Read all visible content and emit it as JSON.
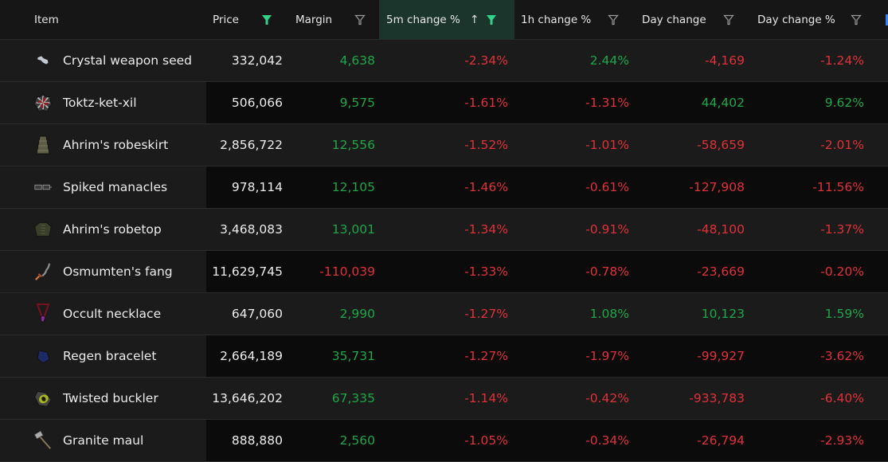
{
  "colors": {
    "positive": "#1fa64a",
    "negative": "#e0313a",
    "accent_filter": "#2fd38a",
    "sorted_header_bg": "#1c352c"
  },
  "header": {
    "columns": [
      {
        "key": "item",
        "label": "Item",
        "filter_active": false,
        "has_filter": false
      },
      {
        "key": "price",
        "label": "Price",
        "filter_active": true,
        "has_filter": true
      },
      {
        "key": "margin",
        "label": "Margin",
        "filter_active": false,
        "has_filter": true
      },
      {
        "key": "change_5m",
        "label": "5m change %",
        "filter_active": true,
        "has_filter": true,
        "sort": "ascending",
        "sort_icon": "arrow-up-icon"
      },
      {
        "key": "change_1h",
        "label": "1h change %",
        "filter_active": false,
        "has_filter": true
      },
      {
        "key": "day_change",
        "label": "Day change",
        "filter_active": false,
        "has_filter": true
      },
      {
        "key": "day_change_pct",
        "label": "Day change %",
        "filter_active": false,
        "has_filter": true
      }
    ]
  },
  "rows": [
    {
      "name": "Crystal weapon seed",
      "icon": "crystal-seed-icon",
      "price": "332,042",
      "margin": "4,638",
      "m": "pos",
      "c5": "-2.34%",
      "c5s": "neg",
      "c1": "2.44%",
      "c1s": "pos",
      "dc": "-4,169",
      "dcs": "neg",
      "dp": "-1.24%",
      "dps": "neg"
    },
    {
      "name": "Toktz-ket-xil",
      "icon": "shield-icon",
      "price": "506,066",
      "margin": "9,575",
      "m": "pos",
      "c5": "-1.61%",
      "c5s": "neg",
      "c1": "-1.31%",
      "c1s": "neg",
      "dc": "44,402",
      "dcs": "pos",
      "dp": "9.62%",
      "dps": "pos"
    },
    {
      "name": "Ahrim's robeskirt",
      "icon": "robeskirt-icon",
      "price": "2,856,722",
      "margin": "12,556",
      "m": "pos",
      "c5": "-1.52%",
      "c5s": "neg",
      "c1": "-1.01%",
      "c1s": "neg",
      "dc": "-58,659",
      "dcs": "neg",
      "dp": "-2.01%",
      "dps": "neg"
    },
    {
      "name": "Spiked manacles",
      "icon": "manacles-icon",
      "price": "978,114",
      "margin": "12,105",
      "m": "pos",
      "c5": "-1.46%",
      "c5s": "neg",
      "c1": "-0.61%",
      "c1s": "neg",
      "dc": "-127,908",
      "dcs": "neg",
      "dp": "-11.56%",
      "dps": "neg"
    },
    {
      "name": "Ahrim's robetop",
      "icon": "robetop-icon",
      "price": "3,468,083",
      "margin": "13,001",
      "m": "pos",
      "c5": "-1.34%",
      "c5s": "neg",
      "c1": "-0.91%",
      "c1s": "neg",
      "dc": "-48,100",
      "dcs": "neg",
      "dp": "-1.37%",
      "dps": "neg"
    },
    {
      "name": "Osmumten's fang",
      "icon": "sword-icon",
      "price": "11,629,745",
      "margin": "-110,039",
      "m": "neg",
      "c5": "-1.33%",
      "c5s": "neg",
      "c1": "-0.78%",
      "c1s": "neg",
      "dc": "-23,669",
      "dcs": "neg",
      "dp": "-0.20%",
      "dps": "neg"
    },
    {
      "name": "Occult necklace",
      "icon": "necklace-icon",
      "price": "647,060",
      "margin": "2,990",
      "m": "pos",
      "c5": "-1.27%",
      "c5s": "neg",
      "c1": "1.08%",
      "c1s": "pos",
      "dc": "10,123",
      "dcs": "pos",
      "dp": "1.59%",
      "dps": "pos"
    },
    {
      "name": "Regen bracelet",
      "icon": "bracelet-icon",
      "price": "2,664,189",
      "margin": "35,731",
      "m": "pos",
      "c5": "-1.27%",
      "c5s": "neg",
      "c1": "-1.97%",
      "c1s": "neg",
      "dc": "-99,927",
      "dcs": "neg",
      "dp": "-3.62%",
      "dps": "neg"
    },
    {
      "name": "Twisted buckler",
      "icon": "buckler-icon",
      "price": "13,646,202",
      "margin": "67,335",
      "m": "pos",
      "c5": "-1.14%",
      "c5s": "neg",
      "c1": "-0.42%",
      "c1s": "neg",
      "dc": "-933,783",
      "dcs": "neg",
      "dp": "-6.40%",
      "dps": "neg"
    },
    {
      "name": "Granite maul",
      "icon": "maul-icon",
      "price": "888,880",
      "margin": "2,560",
      "m": "pos",
      "c5": "-1.05%",
      "c5s": "neg",
      "c1": "-0.34%",
      "c1s": "neg",
      "dc": "-26,794",
      "dcs": "neg",
      "dp": "-2.93%",
      "dps": "neg"
    }
  ]
}
